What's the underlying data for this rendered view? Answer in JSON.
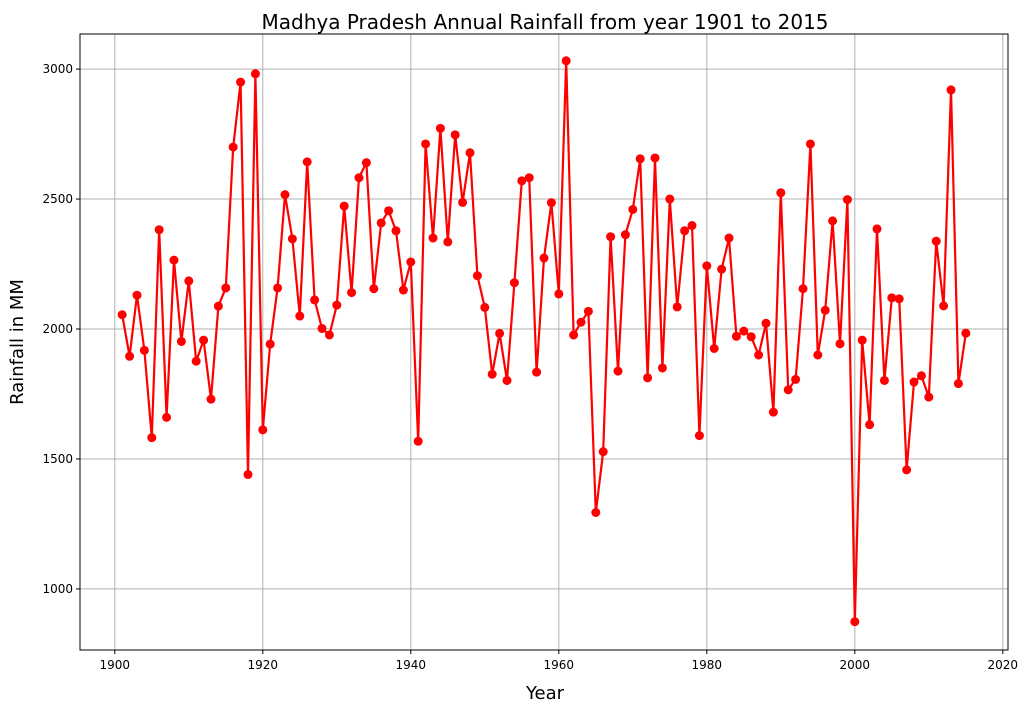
{
  "chart_data": {
    "type": "line",
    "title": "Madhya Pradesh Annual Rainfall from year 1901 to 2015",
    "xlabel": "Year",
    "ylabel": "Rainfall in MM",
    "xlim": [
      1895.3,
      2020.7
    ],
    "ylim": [
      765,
      3135
    ],
    "xticks": [
      1900,
      1920,
      1940,
      1960,
      1980,
      2000,
      2020
    ],
    "yticks": [
      1000,
      1500,
      2000,
      2500,
      3000
    ],
    "grid": true,
    "color": "#ff0000",
    "marker": "circle",
    "x": [
      1901,
      1902,
      1903,
      1904,
      1905,
      1906,
      1907,
      1908,
      1909,
      1910,
      1911,
      1912,
      1913,
      1914,
      1915,
      1916,
      1917,
      1918,
      1919,
      1920,
      1921,
      1922,
      1923,
      1924,
      1925,
      1926,
      1927,
      1928,
      1929,
      1930,
      1931,
      1932,
      1933,
      1934,
      1935,
      1936,
      1937,
      1938,
      1939,
      1940,
      1941,
      1942,
      1943,
      1944,
      1945,
      1946,
      1947,
      1948,
      1949,
      1950,
      1951,
      1952,
      1953,
      1954,
      1955,
      1956,
      1957,
      1958,
      1959,
      1960,
      1961,
      1962,
      1963,
      1964,
      1965,
      1966,
      1967,
      1968,
      1969,
      1970,
      1971,
      1972,
      1973,
      1974,
      1975,
      1976,
      1977,
      1978,
      1979,
      1980,
      1981,
      1982,
      1983,
      1984,
      1985,
      1986,
      1987,
      1988,
      1989,
      1990,
      1991,
      1992,
      1993,
      1994,
      1995,
      1996,
      1997,
      1998,
      1999,
      2000,
      2001,
      2002,
      2003,
      2004,
      2005,
      2006,
      2007,
      2008,
      2009,
      2010,
      2011,
      2012,
      2013,
      2014,
      2015
    ],
    "y": [
      2055,
      1895,
      2130,
      1918,
      1582,
      2382,
      1660,
      2265,
      1952,
      2185,
      1876,
      1957,
      1730,
      2088,
      2158,
      2700,
      2950,
      1440,
      2982,
      1612,
      1942,
      2158,
      2517,
      2347,
      2050,
      2643,
      2112,
      2002,
      1977,
      2092,
      2473,
      2140,
      2582,
      2640,
      2155,
      2408,
      2455,
      2378,
      2150,
      2258,
      1568,
      2712,
      2350,
      2772,
      2335,
      2747,
      2487,
      2678,
      2205,
      2083,
      1826,
      1983,
      1802,
      2178,
      2570,
      2582,
      1834,
      2273,
      2486,
      2135,
      3032,
      1977,
      2026,
      2068,
      1294,
      1528,
      2355,
      1838,
      2363,
      2460,
      2655,
      1812,
      2658,
      1850,
      2500,
      2085,
      2378,
      2398,
      1590,
      2243,
      1925,
      2230,
      2350,
      1972,
      1992,
      1970,
      1900,
      2022,
      1680,
      2524,
      1766,
      1806,
      2155,
      2712,
      1900,
      2072,
      2416,
      1943,
      2498,
      874,
      1957,
      1632,
      2385,
      1802,
      2120,
      2116,
      1458,
      1796,
      1820,
      1738,
      2338,
      2089,
      2920,
      1790,
      1984
    ]
  }
}
